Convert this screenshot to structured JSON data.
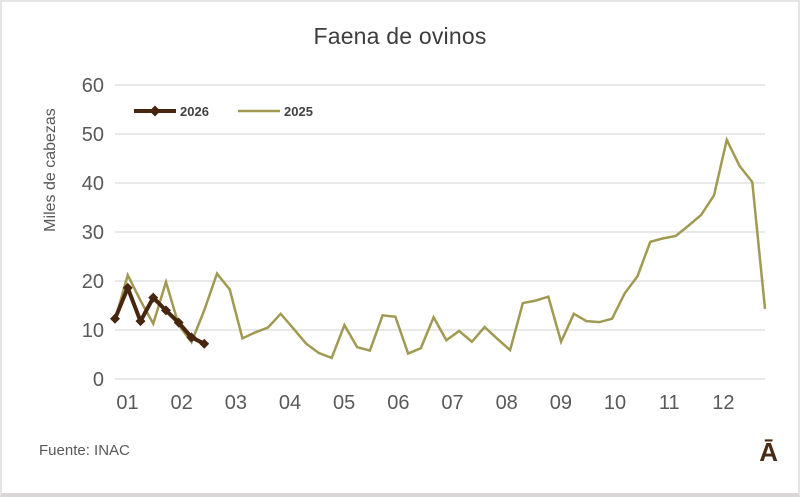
{
  "chart_data": {
    "type": "line",
    "title": "Faena de ovinos",
    "ylabel": "Miles de cabezas",
    "ylim": [
      0,
      60
    ],
    "yticks": [
      0,
      10,
      20,
      30,
      40,
      50,
      60
    ],
    "grid": "horizontal",
    "legend_position": "top-left-inside",
    "x_axis": {
      "categories": [
        "01",
        "02",
        "03",
        "04",
        "05",
        "06",
        "07",
        "08",
        "09",
        "10",
        "11",
        "12"
      ],
      "unit": "month (weekly points)",
      "n_points": 52
    },
    "series": [
      {
        "name": "2026",
        "color": "#46260f",
        "marker": "diamond",
        "line_width": 4,
        "values": [
          12.3,
          18.6,
          11.8,
          16.6,
          14,
          11.5,
          8.5,
          7.2
        ]
      },
      {
        "name": "2025",
        "color": "#a19a52",
        "marker": "none",
        "line_width": 2.5,
        "values": [
          12,
          21.2,
          16,
          11.3,
          19.8,
          11,
          7.5,
          14,
          21.5,
          18.3,
          8.3,
          9.5,
          10.5,
          13.3,
          10.3,
          7.2,
          5.3,
          4.3,
          11,
          6.5,
          5.8,
          13,
          12.7,
          5.2,
          6.3,
          12.6,
          7.9,
          9.8,
          7.6,
          10.6,
          8.2,
          5.9,
          15.5,
          16,
          16.8,
          7.6,
          13.3,
          11.8,
          11.6,
          12.3,
          17.5,
          21,
          28,
          28.7,
          29.2,
          31.3,
          33.5,
          37.5,
          48.8,
          43.5,
          40.2,
          14.3
        ]
      }
    ]
  },
  "footer": {
    "source": "Fuente: INAC",
    "logo_glyph": "Ā"
  },
  "colors": {
    "series_2026": "#46260f",
    "series_2025": "#a19a52",
    "grid": "#d9d9d9",
    "tick_text": "#595959",
    "title_text": "#3d3d3d",
    "logo": "#4a2b14"
  }
}
